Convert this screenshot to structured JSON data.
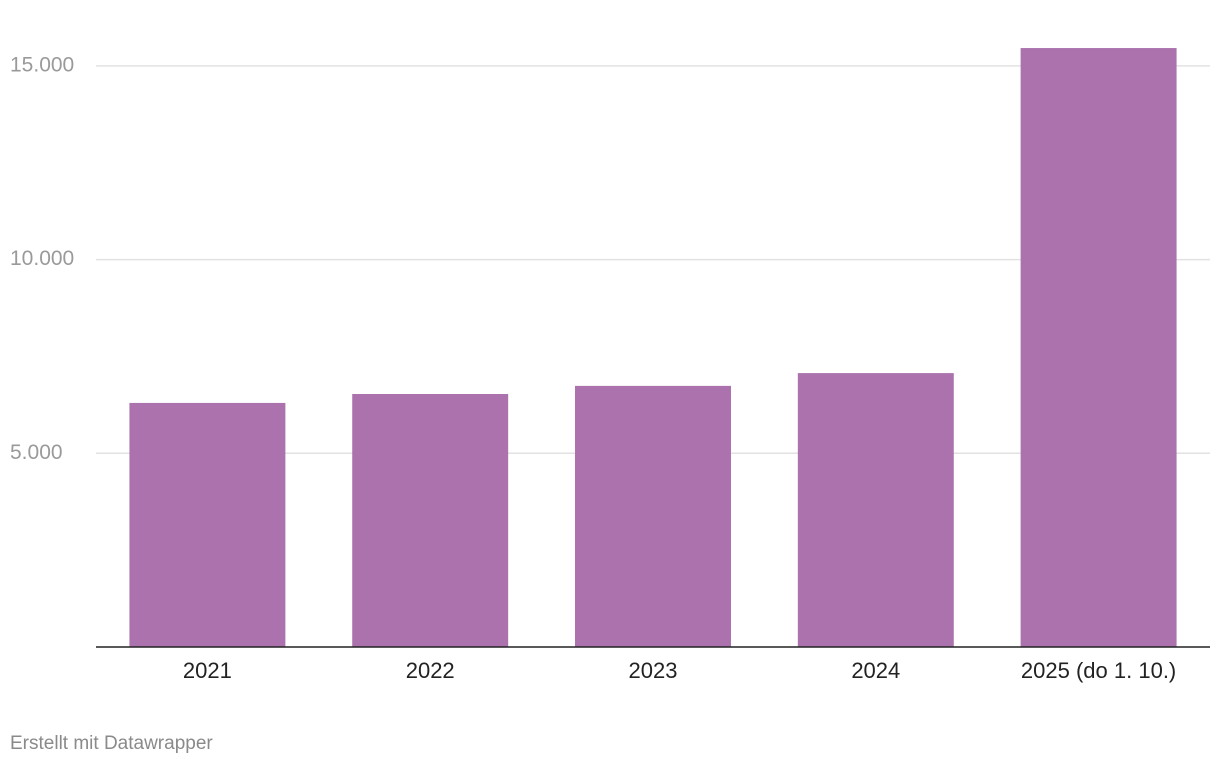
{
  "chart_data": {
    "type": "bar",
    "categories": [
      "2021",
      "2022",
      "2023",
      "2024",
      "2025 (do 1. 10.)"
    ],
    "values": [
      6300,
      6530,
      6740,
      7070,
      15460
    ],
    "color": "#ab72ad",
    "ylim": [
      0,
      15500
    ],
    "yticks": [
      {
        "value": 5000,
        "label": "5.000"
      },
      {
        "value": 10000,
        "label": "10.000"
      },
      {
        "value": 15000,
        "label": "15.000"
      }
    ],
    "grid": true,
    "credit": "Erstellt mit Datawrapper"
  }
}
